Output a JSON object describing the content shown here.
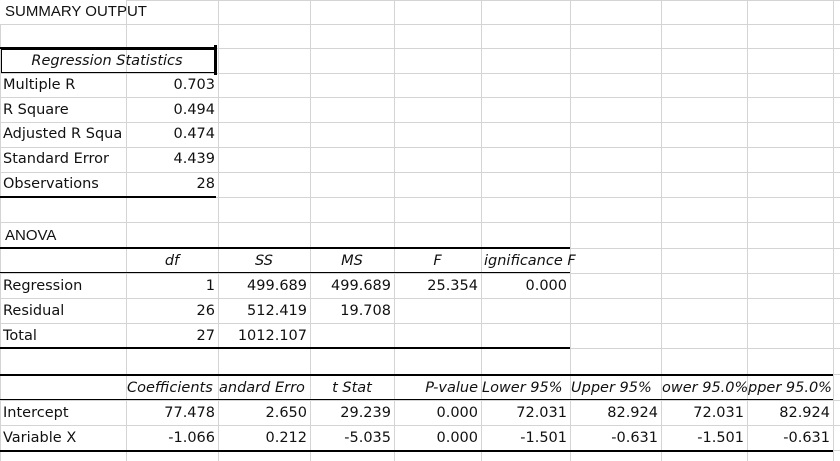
{
  "sheet": {
    "title": "SUMMARY OUTPUT",
    "regression_statistics": {
      "header": "Regression Statistics",
      "rows": [
        {
          "label": "Multiple R",
          "value": "0.703"
        },
        {
          "label": "R Square",
          "value": "0.494"
        },
        {
          "label": "Adjusted R Squa",
          "value": "0.474"
        },
        {
          "label": "Standard Error",
          "value": "4.439"
        },
        {
          "label": "Observations",
          "value": "28"
        }
      ]
    },
    "anova": {
      "title": "ANOVA",
      "headers": [
        "df",
        "SS",
        "MS",
        "F",
        "ignificance F"
      ],
      "rows": [
        {
          "label": "Regression",
          "cells": [
            "1",
            "499.689",
            "499.689",
            "25.354",
            "0.000"
          ]
        },
        {
          "label": "Residual",
          "cells": [
            "26",
            "512.419",
            "19.708",
            "",
            ""
          ]
        },
        {
          "label": "Total",
          "cells": [
            "27",
            "1012.107",
            "",
            "",
            ""
          ]
        }
      ]
    },
    "coefficients": {
      "headers": [
        "Coefficients",
        "andard Erro",
        "t Stat",
        "P-value",
        "Lower 95%",
        "Upper 95%",
        "ower 95.0%",
        "pper 95.0%"
      ],
      "rows": [
        {
          "label": "Intercept",
          "cells": [
            "77.478",
            "2.650",
            "29.239",
            "0.000",
            "72.031",
            "82.924",
            "72.031",
            "82.924"
          ]
        },
        {
          "label": "Variable X",
          "cells": [
            "-1.066",
            "0.212",
            "-5.035",
            "0.000",
            "-1.501",
            "-0.631",
            "-1.501",
            "-0.631"
          ]
        }
      ]
    }
  }
}
